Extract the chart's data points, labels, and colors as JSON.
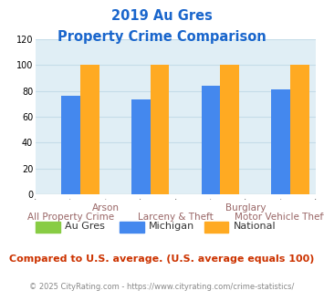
{
  "title_line1": "2019 Au Gres",
  "title_line2": "Property Crime Comparison",
  "series": {
    "Au Gres": {
      "values": [
        0,
        0,
        0,
        0
      ],
      "color": "#88cc44"
    },
    "Michigan": {
      "values": [
        76,
        73,
        84,
        81
      ],
      "color": "#4488ee"
    },
    "National": {
      "values": [
        100,
        100,
        100,
        100
      ],
      "color": "#ffaa22"
    }
  },
  "ylim": [
    0,
    120
  ],
  "yticks": [
    0,
    20,
    40,
    60,
    80,
    100,
    120
  ],
  "bar_width": 0.27,
  "group_positions": [
    0.5,
    1.5,
    2.5,
    3.5
  ],
  "xlim": [
    0,
    4
  ],
  "plot_bg_color": "#e0eef5",
  "title_color": "#1a66cc",
  "footer_text": "Compared to U.S. average. (U.S. average equals 100)",
  "footer_color": "#cc3300",
  "credit_text": "© 2025 CityRating.com - https://www.cityrating.com/crime-statistics/",
  "credit_color": "#888888",
  "grid_color": "#c5dce8",
  "top_labels": [
    [
      "Arson",
      1.0
    ],
    [
      "Burglary",
      3.0
    ]
  ],
  "bottom_labels": [
    [
      "All Property Crime",
      0.5
    ],
    [
      "Larceny & Theft",
      2.0
    ],
    [
      "Motor Vehicle Theft",
      3.5
    ]
  ],
  "label_color": "#996666"
}
